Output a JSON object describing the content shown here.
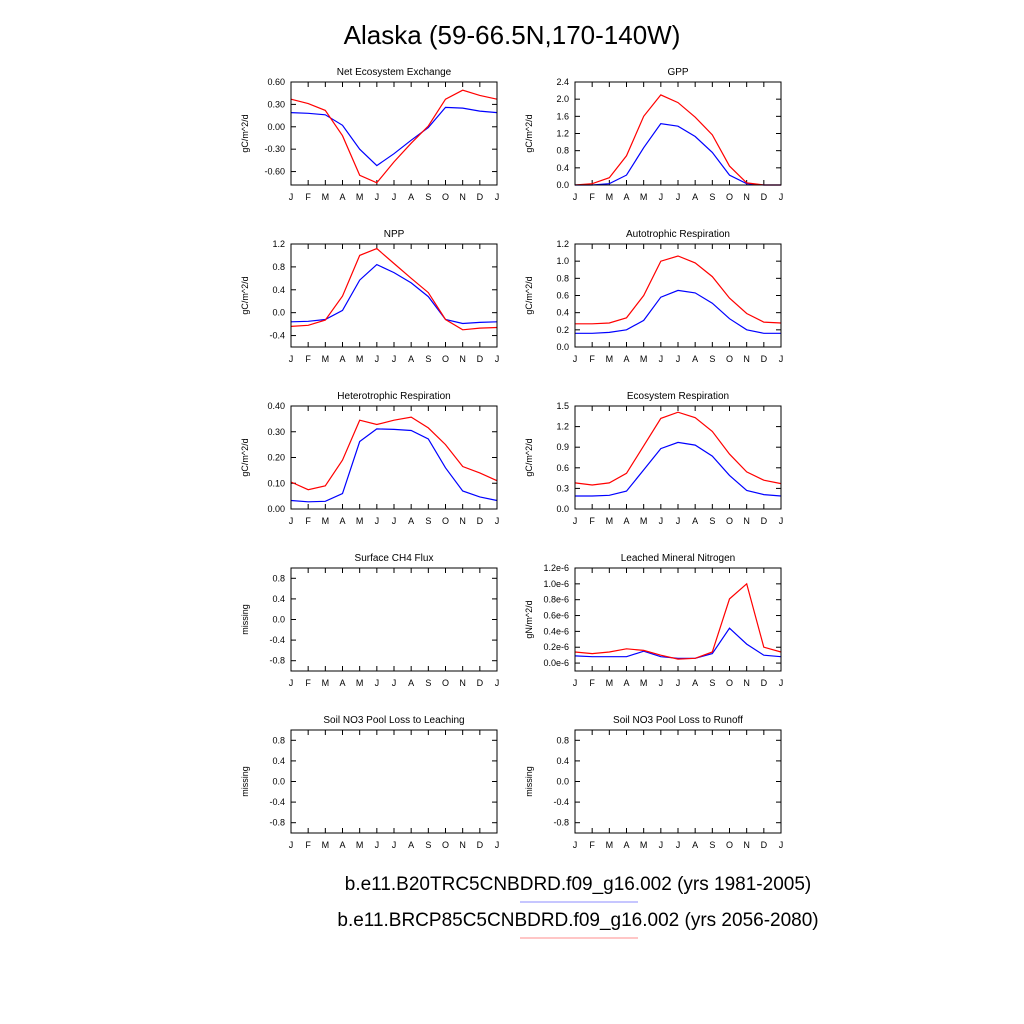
{
  "title": "Alaska (59-66.5N,170-140W)",
  "colors": {
    "series1": "#0000ff",
    "series2": "#ff0000",
    "legend_line1": "#8c8cff",
    "legend_line2": "#ff8c8c"
  },
  "legend": [
    {
      "label": "b.e11.B20TRC5CNBDRD.f09_g16.002 (yrs 1981-2005)",
      "color": "#0000ff"
    },
    {
      "label": "b.e11.BRCP85C5CNBDRD.f09_g16.002 (yrs 2056-2080)",
      "color": "#ff0000"
    }
  ],
  "chart_data": [
    {
      "type": "line",
      "title": "Net Ecosystem Exchange",
      "ylabel": "gC/m^2/d",
      "x": [
        "J",
        "F",
        "M",
        "A",
        "M",
        "J",
        "J",
        "A",
        "S",
        "O",
        "N",
        "D",
        "J"
      ],
      "ylim": [
        -0.78,
        0.6
      ],
      "yticks": [
        0.6,
        0.3,
        0.0,
        -0.3,
        -0.6
      ],
      "yticklabels": [
        "0.60",
        "0.30",
        "0.00",
        "-0.30",
        "-0.60"
      ],
      "series": [
        {
          "values": [
            0.19,
            0.18,
            0.16,
            0.02,
            -0.3,
            -0.52,
            -0.36,
            -0.18,
            -0.01,
            0.26,
            0.25,
            0.21,
            0.19
          ]
        },
        {
          "values": [
            0.37,
            0.31,
            0.22,
            -0.12,
            -0.65,
            -0.75,
            -0.47,
            -0.22,
            0.01,
            0.37,
            0.49,
            0.42,
            0.37
          ]
        }
      ]
    },
    {
      "type": "line",
      "title": "GPP",
      "ylabel": "gC/m^2/d",
      "x": [
        "J",
        "F",
        "M",
        "A",
        "M",
        "J",
        "J",
        "A",
        "S",
        "O",
        "N",
        "D",
        "J"
      ],
      "ylim": [
        0,
        2.4
      ],
      "yticks": [
        0,
        0.4,
        0.8,
        1.2,
        1.6,
        2.0,
        2.4
      ],
      "yticklabels": [
        "0.0",
        "0.4",
        "0.8",
        "1.2",
        "1.6",
        "2.0",
        "2.4"
      ],
      "series": [
        {
          "values": [
            0.0,
            0.0,
            0.03,
            0.23,
            0.87,
            1.43,
            1.37,
            1.13,
            0.76,
            0.23,
            0.03,
            0.0,
            0.0
          ]
        },
        {
          "values": [
            0.0,
            0.03,
            0.17,
            0.68,
            1.6,
            2.1,
            1.92,
            1.58,
            1.17,
            0.44,
            0.05,
            0.0,
            0.0
          ]
        }
      ]
    },
    {
      "type": "line",
      "title": "NPP",
      "ylabel": "gC/m^2/d",
      "x": [
        "J",
        "F",
        "M",
        "A",
        "M",
        "J",
        "J",
        "A",
        "S",
        "O",
        "N",
        "D",
        "J"
      ],
      "ylim": [
        -0.6,
        1.2
      ],
      "yticks": [
        -0.4,
        0.0,
        0.4,
        0.8,
        1.2
      ],
      "yticklabels": [
        "-0.4",
        "0.0",
        "0.4",
        "0.8",
        "1.2"
      ],
      "series": [
        {
          "values": [
            -0.16,
            -0.15,
            -0.12,
            0.04,
            0.57,
            0.84,
            0.7,
            0.52,
            0.28,
            -0.12,
            -0.19,
            -0.17,
            -0.16
          ]
        },
        {
          "values": [
            -0.24,
            -0.22,
            -0.13,
            0.29,
            1.0,
            1.12,
            0.86,
            0.6,
            0.35,
            -0.12,
            -0.3,
            -0.27,
            -0.26
          ]
        }
      ]
    },
    {
      "type": "line",
      "title": "Autotrophic Respiration",
      "ylabel": "gC/m^2/d",
      "x": [
        "J",
        "F",
        "M",
        "A",
        "M",
        "J",
        "J",
        "A",
        "S",
        "O",
        "N",
        "D",
        "J"
      ],
      "ylim": [
        0,
        1.2
      ],
      "yticks": [
        0,
        0.2,
        0.4,
        0.6,
        0.8,
        1.0,
        1.2
      ],
      "yticklabels": [
        "0.0",
        "0.2",
        "0.4",
        "0.6",
        "0.8",
        "1.0",
        "1.2"
      ],
      "series": [
        {
          "values": [
            0.16,
            0.16,
            0.17,
            0.2,
            0.31,
            0.58,
            0.66,
            0.63,
            0.51,
            0.33,
            0.2,
            0.16,
            0.16
          ]
        },
        {
          "values": [
            0.27,
            0.27,
            0.28,
            0.34,
            0.6,
            1.0,
            1.06,
            0.98,
            0.82,
            0.57,
            0.39,
            0.29,
            0.28
          ]
        }
      ]
    },
    {
      "type": "line",
      "title": "Heterotrophic Respiration",
      "ylabel": "gC/m^2/d",
      "x": [
        "J",
        "F",
        "M",
        "A",
        "M",
        "J",
        "J",
        "A",
        "S",
        "O",
        "N",
        "D",
        "J"
      ],
      "ylim": [
        0,
        0.4
      ],
      "yticks": [
        0,
        0.1,
        0.2,
        0.3,
        0.4
      ],
      "yticklabels": [
        "0.00",
        "0.10",
        "0.20",
        "0.30",
        "0.40"
      ],
      "series": [
        {
          "values": [
            0.033,
            0.028,
            0.03,
            0.06,
            0.262,
            0.311,
            0.309,
            0.305,
            0.272,
            0.16,
            0.07,
            0.047,
            0.033
          ]
        },
        {
          "values": [
            0.105,
            0.075,
            0.09,
            0.19,
            0.345,
            0.328,
            0.345,
            0.357,
            0.315,
            0.25,
            0.165,
            0.14,
            0.11
          ]
        }
      ]
    },
    {
      "type": "line",
      "title": "Ecosystem Respiration",
      "ylabel": "gC/m^2/d",
      "x": [
        "J",
        "F",
        "M",
        "A",
        "M",
        "J",
        "J",
        "A",
        "S",
        "O",
        "N",
        "D",
        "J"
      ],
      "ylim": [
        0,
        1.5
      ],
      "yticks": [
        0,
        0.3,
        0.6,
        0.9,
        1.2,
        1.5
      ],
      "yticklabels": [
        "0.0",
        "0.3",
        "0.6",
        "0.9",
        "1.2",
        "1.5"
      ],
      "series": [
        {
          "values": [
            0.19,
            0.19,
            0.2,
            0.26,
            0.57,
            0.88,
            0.97,
            0.93,
            0.77,
            0.49,
            0.27,
            0.21,
            0.19
          ]
        },
        {
          "values": [
            0.38,
            0.35,
            0.38,
            0.52,
            0.92,
            1.32,
            1.41,
            1.33,
            1.13,
            0.8,
            0.54,
            0.42,
            0.37
          ]
        }
      ]
    },
    {
      "type": "line",
      "title": "Surface CH4 Flux",
      "ylabel": "missing",
      "x": [
        "J",
        "F",
        "M",
        "A",
        "M",
        "J",
        "J",
        "A",
        "S",
        "O",
        "N",
        "D",
        "J"
      ],
      "ylim": [
        -1.0,
        1.0
      ],
      "yticks": [
        -0.8,
        -0.4,
        0.0,
        0.4,
        0.8
      ],
      "yticklabels": [
        "-0.8",
        "-0.4",
        "0.0",
        "0.4",
        "0.8"
      ],
      "series": []
    },
    {
      "type": "line",
      "title": "Leached Mineral Nitrogen",
      "ylabel": "gN/m^2/d",
      "x": [
        "J",
        "F",
        "M",
        "A",
        "M",
        "J",
        "J",
        "A",
        "S",
        "O",
        "N",
        "D",
        "J"
      ],
      "ylim": [
        -1e-07,
        1.2e-06
      ],
      "yticks": [
        0,
        2e-07,
        4e-07,
        6e-07,
        8e-07,
        1e-06,
        1.2e-06
      ],
      "yticklabels": [
        "0.0e-6",
        "0.2e-6",
        "0.4e-6",
        "0.6e-6",
        "0.8e-6",
        "1.0e-6",
        "1.2e-6"
      ],
      "series": [
        {
          "values": [
            9e-08,
            8e-08,
            8e-08,
            8e-08,
            1.5e-07,
            8e-08,
            6e-08,
            6e-08,
            1.2e-07,
            4.4e-07,
            2.4e-07,
            1e-07,
            8e-08
          ]
        },
        {
          "values": [
            1.4e-07,
            1.2e-07,
            1.4e-07,
            1.8e-07,
            1.6e-07,
            1e-07,
            5e-08,
            6e-08,
            1.4e-07,
            8.1e-07,
            1e-06,
            2e-07,
            1.4e-07
          ]
        }
      ]
    },
    {
      "type": "line",
      "title": "Soil NO3 Pool Loss to Leaching",
      "ylabel": "missing",
      "x": [
        "J",
        "F",
        "M",
        "A",
        "M",
        "J",
        "J",
        "A",
        "S",
        "O",
        "N",
        "D",
        "J"
      ],
      "ylim": [
        -1.0,
        1.0
      ],
      "yticks": [
        -0.8,
        -0.4,
        0.0,
        0.4,
        0.8
      ],
      "yticklabels": [
        "-0.8",
        "-0.4",
        "0.0",
        "0.4",
        "0.8"
      ],
      "series": []
    },
    {
      "type": "line",
      "title": "Soil NO3 Pool Loss to Runoff",
      "ylabel": "missing",
      "x": [
        "J",
        "F",
        "M",
        "A",
        "M",
        "J",
        "J",
        "A",
        "S",
        "O",
        "N",
        "D",
        "J"
      ],
      "ylim": [
        -1.0,
        1.0
      ],
      "yticks": [
        -0.8,
        -0.4,
        0.0,
        0.4,
        0.8
      ],
      "yticklabels": [
        "-0.8",
        "-0.4",
        "0.0",
        "0.4",
        "0.8"
      ],
      "series": []
    }
  ]
}
